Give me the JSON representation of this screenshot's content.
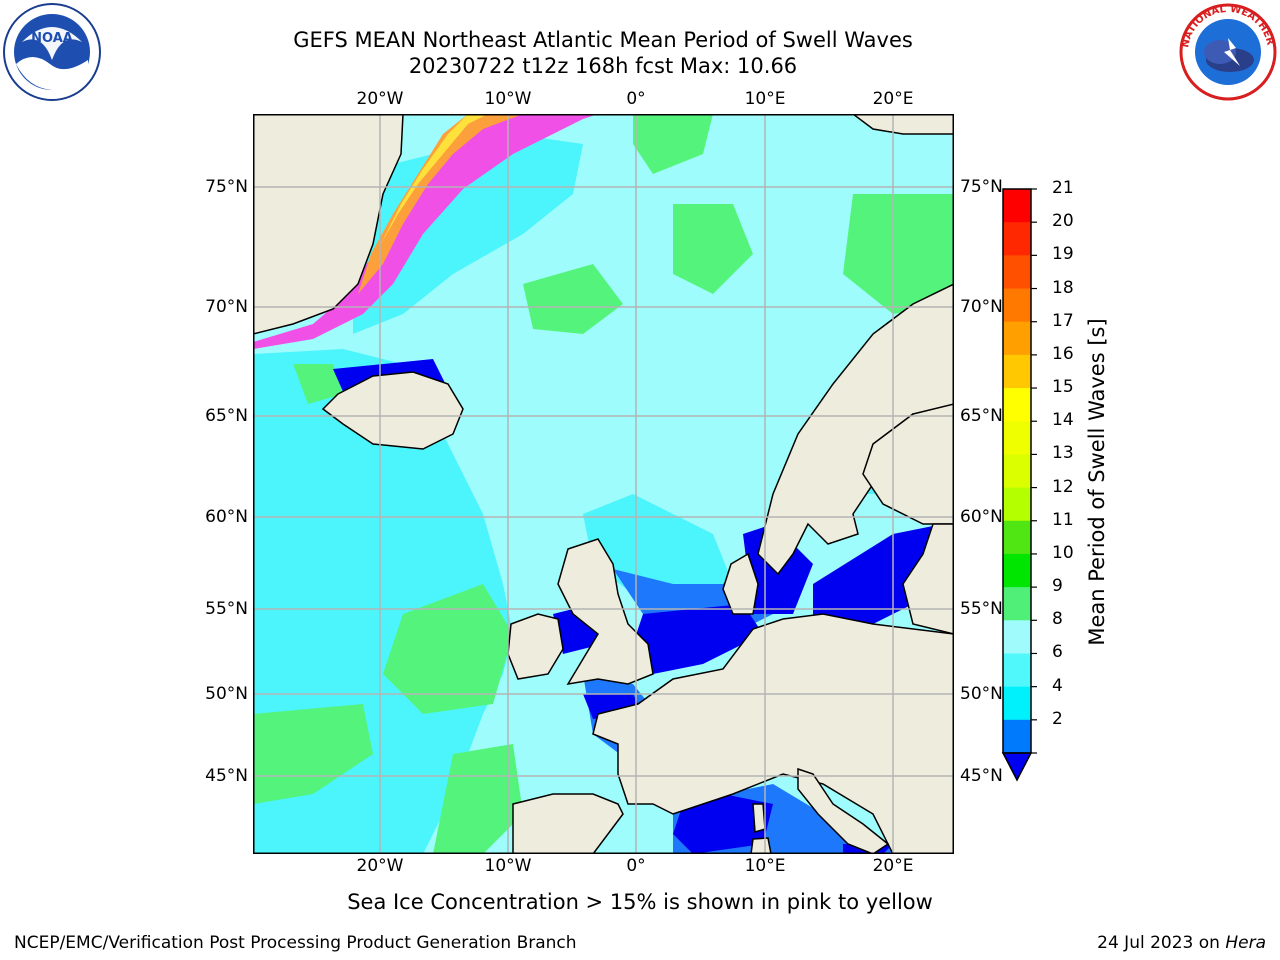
{
  "title": {
    "line1": "GEFS MEAN Northeast Atlantic Mean Period of Swell Waves",
    "line2": "20230722 t12z 168h fcst   Max: 10.66"
  },
  "map": {
    "lon_labels": [
      "20°W",
      "10°W",
      "0°",
      "10°E",
      "20°E"
    ],
    "lat_labels": [
      "75°N",
      "70°N",
      "65°N",
      "60°N",
      "55°N",
      "50°N",
      "45°N"
    ],
    "colors": {
      "land": "#eeecdc",
      "sea_light_cyan": "#9ffcfc",
      "sea_cyan": "#4cf4fc",
      "sea_green": "#54f47c",
      "sea_blue": "#1e78fc",
      "sea_dark_blue": "#0000f0",
      "ice_pink": "#f050e6",
      "ice_orange": "#fca03c",
      "ice_yellow": "#ffe13c",
      "grid": "#b4b4b4"
    }
  },
  "colorbar": {
    "label": "Mean Period of Swell Waves [s]",
    "ticks": [
      "21",
      "20",
      "19",
      "18",
      "17",
      "16",
      "15",
      "14",
      "13",
      "12",
      "11",
      "10",
      "9",
      "8",
      "6",
      "4",
      "2"
    ],
    "colors": [
      "#ff0000",
      "#ff2800",
      "#ff5000",
      "#ff7800",
      "#ffa000",
      "#ffc800",
      "#ffff00",
      "#f0ff00",
      "#dcff00",
      "#b4ff00",
      "#50e614",
      "#00e600",
      "#50f078",
      "#a0fcfc",
      "#50f8fc",
      "#00f0fc",
      "#007afc"
    ],
    "extend_color": "#0000f0"
  },
  "caption": "Sea Ice Concentration > 15% is shown in pink to yellow",
  "footer": {
    "left": "NCEP/EMC/Verification Post Processing Product Generation Branch",
    "right_date": "24 Jul 2023 on ",
    "right_machine": "Hera"
  },
  "logos": {
    "noaa_text": "NOAA",
    "nws_text": "NATIONAL WEATHER SERVICE"
  }
}
